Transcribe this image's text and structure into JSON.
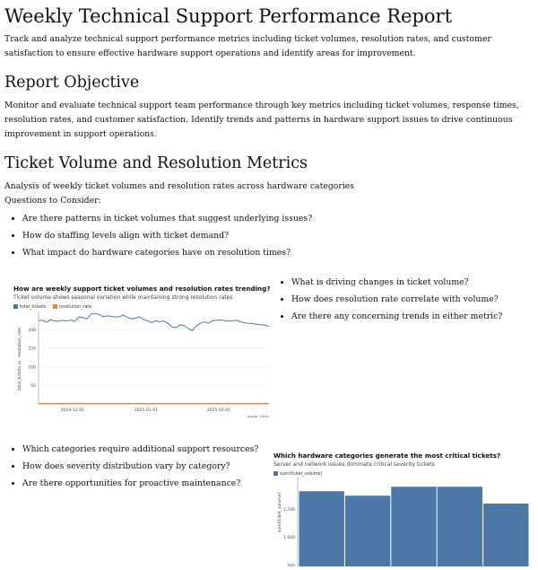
{
  "title": "Weekly Technical Support Performance Report",
  "intro": "Track and analyze technical support performance metrics including ticket volumes, resolution rates, and customer satisfaction to ensure effective hardware support operations and identify areas for improvement.",
  "objective": {
    "heading": "Report Objective",
    "text": "Monitor and evaluate technical support team performance through key metrics including ticket volumes, response times, resolution rates, and customer satisfaction. Identify trends and patterns in hardware support issues to drive continuous improvement in support operations."
  },
  "section": {
    "heading": "Ticket Volume and Resolution Metrics",
    "text": "Analysis of weekly ticket volumes and resolution rates across hardware categories",
    "questions_label": "Questions to Consider:",
    "questions": [
      "Are there patterns in ticket volumes that suggest underlying issues?",
      "How do staffing levels align with ticket demand?",
      "What impact do hardware categories have on resolution times?"
    ]
  },
  "line_questions": [
    "What is driving changes in ticket volume?",
    "How does resolution rate correlate with volume?",
    "Are there any concerning trends in either metric?"
  ],
  "bar_questions": [
    "Which categories require additional support resources?",
    "How does severity distribution vary by category?",
    "Are there opportunities for proactive maintenance?"
  ],
  "colors": {
    "blue": "#4c78a8",
    "orange": "#f58518"
  },
  "chart_data": [
    {
      "type": "line",
      "title": "How are weekly support ticket volumes and resolution rates trending?",
      "subtitle": "Ticket volume shows seasonal variation while maintaining strong resolution rates",
      "xlabel": "week_date",
      "ylabel": "total_tickets vs. resolution_rate",
      "ylim": [
        0,
        250
      ],
      "yticks": [
        "50",
        "100",
        "150",
        "200"
      ],
      "xticks": [
        "2024-12-01",
        "2025-01-01",
        "2025-02-01"
      ],
      "series": [
        {
          "name": "total_tickets",
          "values": [
            226,
            226,
            221,
            228,
            224,
            224,
            226,
            224,
            227,
            223,
            236,
            233,
            230,
            243,
            245,
            242,
            236,
            238,
            237,
            235,
            236,
            240,
            234,
            230,
            232,
            236,
            228,
            225,
            220,
            225,
            222,
            224,
            218,
            208,
            206,
            214,
            212,
            204,
            198,
            210,
            218,
            222,
            218,
            225,
            226,
            227,
            225,
            224,
            225,
            226,
            222,
            219,
            218,
            217,
            215,
            214,
            213,
            210
          ]
        },
        {
          "name": "resolution_rate",
          "values": [
            0.92,
            0.93,
            0.92,
            0.94,
            0.93,
            0.92,
            0.93,
            0.94,
            0.93,
            0.92,
            0.93,
            0.94,
            0.93,
            0.92,
            0.93,
            0.94,
            0.93,
            0.92,
            0.93,
            0.94,
            0.93,
            0.92,
            0.93,
            0.94,
            0.93,
            0.92,
            0.93,
            0.94,
            0.93,
            0.92,
            0.93,
            0.94,
            0.93,
            0.92,
            0.93,
            0.94,
            0.93,
            0.92,
            0.93,
            0.94,
            0.93,
            0.92,
            0.93,
            0.94,
            0.93,
            0.92,
            0.93,
            0.94,
            0.93,
            0.92,
            0.93,
            0.94,
            0.93,
            0.92,
            0.93,
            0.94,
            0.93,
            0.92
          ]
        }
      ]
    },
    {
      "type": "bar",
      "title": "Which hardware categories generate the most critical tickets?",
      "subtitle": "Server and network issues dominate critical severity tickets",
      "legend": "sum(ticket_volume)",
      "ylabel": "sum(ticket_volume)",
      "yticks": [
        "500",
        "1,000",
        "1,500"
      ],
      "values": [
        1820,
        1740,
        1900,
        1900,
        1600
      ]
    }
  ]
}
